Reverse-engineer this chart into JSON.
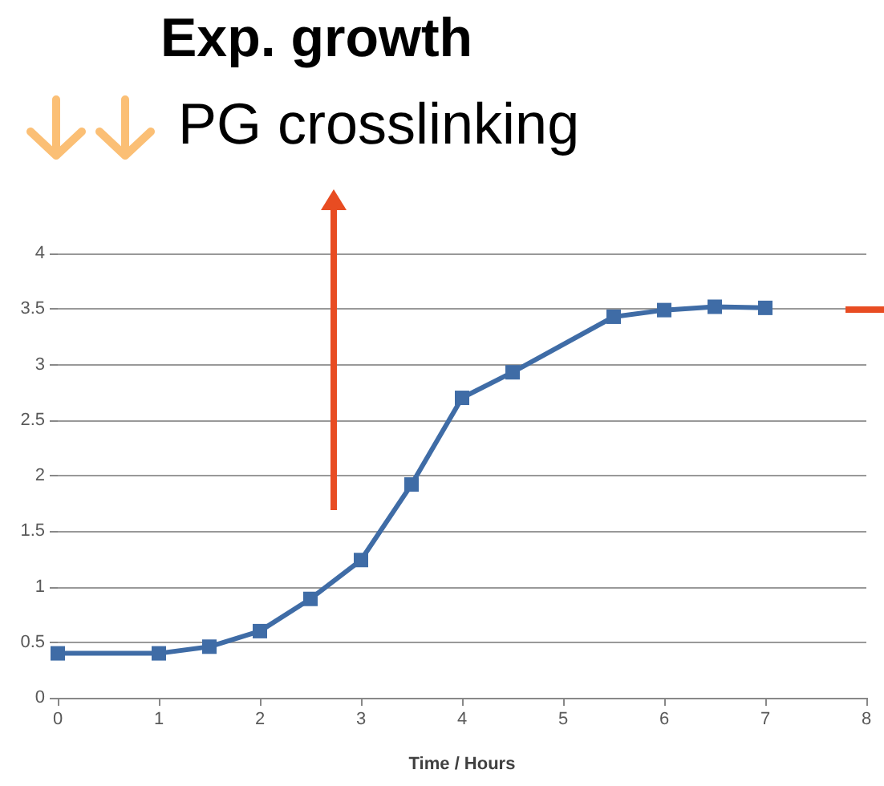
{
  "chart_data": {
    "type": "line",
    "title": "Exp. growth",
    "subtitle": "PG crosslinking",
    "xlabel": "Time / Hours",
    "x": [
      0,
      1,
      1.5,
      2,
      2.5,
      3,
      3.5,
      4,
      4.5,
      5.5,
      6,
      6.5,
      7
    ],
    "series": [
      {
        "color": "#3f6ca6",
        "values": [
          0.4,
          0.4,
          0.46,
          0.6,
          0.89,
          1.24,
          1.92,
          2.7,
          2.93,
          3.43,
          3.49,
          3.52,
          3.51
        ]
      }
    ],
    "xlim": [
      0,
      8
    ],
    "xticks": [
      0,
      1,
      2,
      3,
      4,
      5,
      6,
      7,
      8
    ],
    "ylim": [
      0,
      4
    ],
    "yticks": [
      0,
      0.5,
      1,
      1.5,
      2,
      2.5,
      3,
      3.5,
      4
    ],
    "grid": "y",
    "marker": "square",
    "line_style": "solid"
  }
}
